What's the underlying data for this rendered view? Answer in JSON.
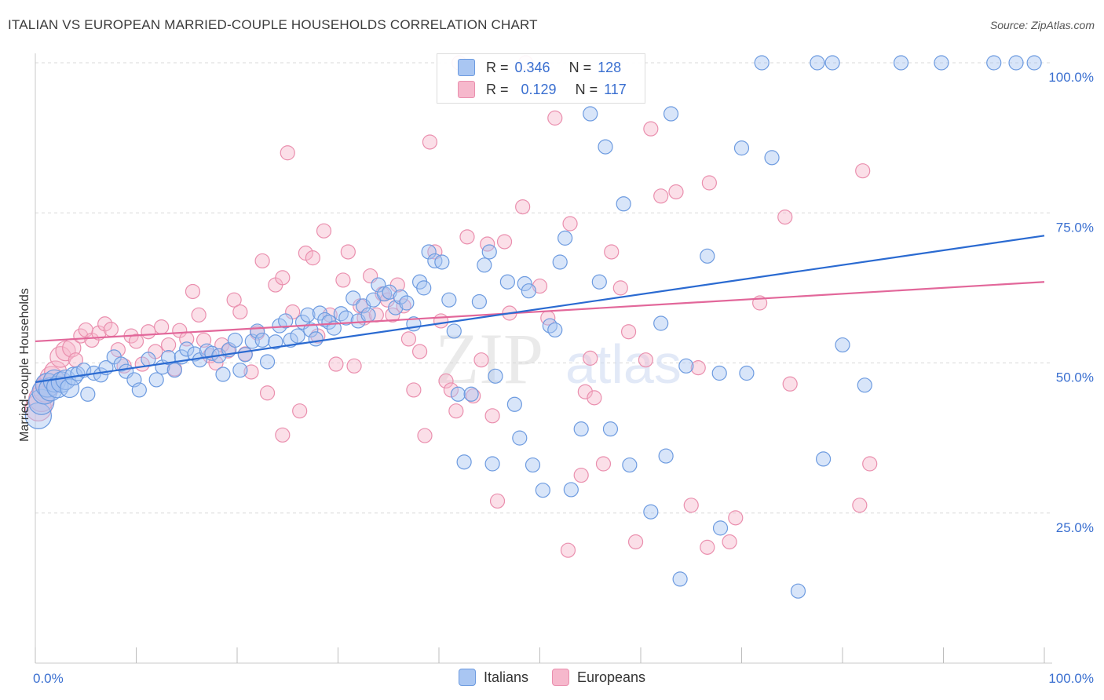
{
  "title": "ITALIAN VS EUROPEAN MARRIED-COUPLE HOUSEHOLDS CORRELATION CHART",
  "source": "Source: ZipAtlas.com",
  "watermark": {
    "zip": "ZIP",
    "atlas": "atlas"
  },
  "colors": {
    "italians_fill": "#a9c6f2",
    "italians_stroke": "#6d9be0",
    "italians_line": "#2a6ad1",
    "europeans_fill": "#f6b8cc",
    "europeans_stroke": "#ea8fae",
    "europeans_line": "#e2679a",
    "axis_text": "#3a6fd0",
    "grid": "#d8d8d8"
  },
  "stats": {
    "italians": {
      "r_label": "R =",
      "r": "0.346",
      "n_label": "N =",
      "n": "128"
    },
    "europeans": {
      "r_label": "R =",
      "r": "0.129",
      "n_label": "N =",
      "n": "117"
    }
  },
  "legend": {
    "italians": "Italians",
    "europeans": "Europeans"
  },
  "chart_data": {
    "type": "scatter",
    "title": "ITALIAN VS EUROPEAN MARRIED-COUPLE HOUSEHOLDS CORRELATION CHART",
    "xlabel": "",
    "ylabel": "Married-couple Households",
    "xlim": [
      0,
      100
    ],
    "ylim": [
      0,
      100
    ],
    "x_tick_labels": [
      "0.0%",
      "100.0%"
    ],
    "y_tick_labels": [
      "25.0%",
      "50.0%",
      "75.0%",
      "100.0%"
    ],
    "y_ticks": [
      25,
      50,
      75,
      100
    ],
    "grid": true,
    "legend_position": "bottom",
    "series": [
      {
        "name": "Italians",
        "trend": {
          "x": [
            0,
            100
          ],
          "y": [
            46.8,
            71.2
          ]
        },
        "points": [
          [
            0.3,
            41.2
          ],
          [
            0.6,
            43.5
          ],
          [
            0.9,
            45.2
          ],
          [
            1.2,
            46.3
          ],
          [
            1.5,
            45.6
          ],
          [
            1.9,
            47.0
          ],
          [
            2.2,
            46.0
          ],
          [
            2.6,
            46.8
          ],
          [
            3.0,
            47.2
          ],
          [
            3.4,
            45.8
          ],
          [
            3.8,
            47.8
          ],
          [
            4.2,
            48.2
          ],
          [
            4.8,
            48.8
          ],
          [
            5.2,
            44.8
          ],
          [
            5.8,
            48.3
          ],
          [
            6.5,
            48.0
          ],
          [
            7.0,
            49.2
          ],
          [
            7.8,
            51.0
          ],
          [
            8.5,
            49.8
          ],
          [
            9.0,
            48.6
          ],
          [
            9.8,
            47.2
          ],
          [
            10.3,
            45.5
          ],
          [
            11.2,
            50.6
          ],
          [
            12.0,
            47.2
          ],
          [
            12.6,
            49.3
          ],
          [
            13.2,
            50.9
          ],
          [
            13.8,
            48.8
          ],
          [
            14.5,
            51.0
          ],
          [
            15.0,
            52.3
          ],
          [
            15.8,
            51.5
          ],
          [
            16.3,
            50.5
          ],
          [
            17.0,
            52.0
          ],
          [
            17.5,
            51.6
          ],
          [
            18.2,
            51.2
          ],
          [
            18.6,
            48.1
          ],
          [
            19.2,
            52.2
          ],
          [
            19.8,
            53.8
          ],
          [
            20.3,
            48.8
          ],
          [
            20.8,
            51.4
          ],
          [
            21.5,
            53.6
          ],
          [
            22.0,
            55.3
          ],
          [
            22.5,
            53.8
          ],
          [
            23.0,
            50.2
          ],
          [
            23.8,
            53.5
          ],
          [
            24.2,
            56.2
          ],
          [
            24.8,
            57.0
          ],
          [
            25.3,
            53.8
          ],
          [
            26.0,
            54.5
          ],
          [
            26.5,
            56.8
          ],
          [
            27.0,
            58.0
          ],
          [
            27.3,
            55.5
          ],
          [
            27.8,
            54.0
          ],
          [
            28.2,
            58.3
          ],
          [
            28.7,
            57.2
          ],
          [
            29.1,
            56.8
          ],
          [
            29.6,
            55.8
          ],
          [
            30.3,
            58.2
          ],
          [
            30.8,
            57.5
          ],
          [
            31.5,
            60.8
          ],
          [
            32.0,
            57.0
          ],
          [
            32.5,
            59.5
          ],
          [
            33.0,
            58.0
          ],
          [
            33.5,
            60.5
          ],
          [
            34.0,
            63.0
          ],
          [
            34.6,
            61.5
          ],
          [
            35.1,
            61.8
          ],
          [
            35.7,
            59.2
          ],
          [
            36.2,
            61.0
          ],
          [
            36.8,
            60.0
          ],
          [
            37.5,
            56.5
          ],
          [
            38.1,
            63.5
          ],
          [
            38.5,
            62.5
          ],
          [
            39.0,
            68.5
          ],
          [
            39.6,
            67.0
          ],
          [
            40.3,
            66.8
          ],
          [
            41.0,
            60.5
          ],
          [
            41.5,
            55.3
          ],
          [
            41.9,
            44.8
          ],
          [
            42.5,
            33.5
          ],
          [
            43.2,
            44.8
          ],
          [
            44.0,
            60.2
          ],
          [
            44.5,
            66.3
          ],
          [
            45.0,
            68.5
          ],
          [
            45.3,
            33.2
          ],
          [
            45.6,
            47.8
          ],
          [
            46.8,
            63.5
          ],
          [
            47.5,
            43.1
          ],
          [
            48.0,
            37.5
          ],
          [
            48.5,
            63.2
          ],
          [
            48.9,
            62.0
          ],
          [
            49.3,
            33.0
          ],
          [
            50.3,
            28.8
          ],
          [
            51.0,
            56.2
          ],
          [
            51.5,
            55.5
          ],
          [
            52.0,
            66.8
          ],
          [
            52.5,
            70.8
          ],
          [
            53.1,
            28.9
          ],
          [
            54.1,
            39.0
          ],
          [
            55.0,
            91.5
          ],
          [
            55.9,
            63.5
          ],
          [
            56.5,
            86.0
          ],
          [
            57.0,
            39.0
          ],
          [
            58.3,
            76.5
          ],
          [
            58.9,
            33.0
          ],
          [
            61.0,
            25.2
          ],
          [
            62.0,
            56.6
          ],
          [
            62.5,
            34.5
          ],
          [
            63.0,
            91.5
          ],
          [
            63.9,
            14.0
          ],
          [
            64.5,
            49.5
          ],
          [
            66.6,
            67.8
          ],
          [
            67.8,
            48.3
          ],
          [
            67.9,
            22.5
          ],
          [
            70.0,
            85.8
          ],
          [
            70.5,
            48.3
          ],
          [
            72.0,
            100.0
          ],
          [
            73.0,
            84.2
          ],
          [
            75.6,
            12.0
          ],
          [
            77.5,
            100.0
          ],
          [
            78.1,
            34.0
          ],
          [
            79.0,
            100.0
          ],
          [
            80.0,
            53.0
          ],
          [
            82.2,
            46.3
          ],
          [
            85.8,
            100.0
          ],
          [
            89.8,
            100.0
          ],
          [
            95.0,
            100.0
          ],
          [
            97.2,
            100.0
          ],
          [
            99.0,
            100.0
          ]
        ]
      },
      {
        "name": "Europeans",
        "trend": {
          "x": [
            0,
            100
          ],
          "y": [
            53.6,
            63.5
          ]
        },
        "points": [
          [
            0.3,
            42.5
          ],
          [
            0.6,
            44.0
          ],
          [
            1.0,
            45.5
          ],
          [
            1.3,
            46.3
          ],
          [
            1.6,
            47.5
          ],
          [
            2.0,
            48.5
          ],
          [
            2.5,
            51.0
          ],
          [
            3.0,
            52.0
          ],
          [
            3.6,
            52.5
          ],
          [
            4.0,
            50.5
          ],
          [
            4.5,
            54.5
          ],
          [
            5.0,
            55.5
          ],
          [
            5.6,
            53.8
          ],
          [
            6.3,
            55.0
          ],
          [
            6.9,
            56.5
          ],
          [
            7.5,
            55.6
          ],
          [
            8.2,
            52.2
          ],
          [
            8.8,
            49.5
          ],
          [
            9.5,
            54.5
          ],
          [
            10.0,
            53.6
          ],
          [
            10.6,
            49.8
          ],
          [
            11.2,
            55.2
          ],
          [
            11.9,
            51.9
          ],
          [
            12.5,
            56.0
          ],
          [
            13.2,
            53.0
          ],
          [
            13.8,
            49.0
          ],
          [
            14.3,
            55.4
          ],
          [
            15.0,
            54.0
          ],
          [
            15.6,
            61.9
          ],
          [
            16.2,
            58.0
          ],
          [
            16.7,
            53.8
          ],
          [
            17.3,
            51.2
          ],
          [
            17.9,
            50.0
          ],
          [
            18.5,
            53.0
          ],
          [
            19.1,
            52.0
          ],
          [
            19.7,
            60.5
          ],
          [
            20.3,
            58.5
          ],
          [
            20.8,
            51.5
          ],
          [
            21.4,
            48.5
          ],
          [
            22.0,
            55.0
          ],
          [
            22.5,
            67.0
          ],
          [
            23.0,
            45.0
          ],
          [
            23.8,
            63.0
          ],
          [
            24.5,
            64.2
          ],
          [
            24.5,
            38.0
          ],
          [
            25.0,
            85.0
          ],
          [
            25.5,
            58.5
          ],
          [
            26.2,
            42.0
          ],
          [
            26.8,
            68.3
          ],
          [
            27.5,
            67.5
          ],
          [
            28.0,
            54.5
          ],
          [
            28.6,
            72.0
          ],
          [
            29.2,
            58.0
          ],
          [
            29.8,
            49.8
          ],
          [
            30.5,
            63.8
          ],
          [
            31.0,
            68.5
          ],
          [
            31.6,
            49.5
          ],
          [
            32.2,
            59.5
          ],
          [
            32.6,
            57.5
          ],
          [
            33.2,
            64.5
          ],
          [
            33.8,
            58.0
          ],
          [
            34.4,
            61.5
          ],
          [
            34.9,
            60.5
          ],
          [
            35.4,
            58.0
          ],
          [
            35.9,
            63.0
          ],
          [
            36.5,
            59.5
          ],
          [
            37.0,
            54.0
          ],
          [
            37.5,
            45.5
          ],
          [
            38.1,
            51.9
          ],
          [
            38.6,
            37.9
          ],
          [
            39.1,
            86.8
          ],
          [
            39.6,
            68.5
          ],
          [
            40.2,
            57.0
          ],
          [
            40.7,
            47.0
          ],
          [
            41.2,
            45.5
          ],
          [
            41.7,
            42.0
          ],
          [
            42.0,
            100.0
          ],
          [
            42.8,
            71.0
          ],
          [
            43.4,
            44.5
          ],
          [
            44.2,
            50.5
          ],
          [
            44.8,
            69.8
          ],
          [
            45.3,
            41.2
          ],
          [
            45.8,
            27.0
          ],
          [
            46.5,
            70.2
          ],
          [
            47.0,
            58.3
          ],
          [
            48.3,
            76.0
          ],
          [
            48.6,
            100.0
          ],
          [
            50.0,
            62.8
          ],
          [
            50.8,
            57.5
          ],
          [
            51.5,
            90.8
          ],
          [
            52.8,
            18.8
          ],
          [
            53.0,
            73.2
          ],
          [
            54.1,
            31.3
          ],
          [
            54.5,
            45.2
          ],
          [
            55.0,
            50.8
          ],
          [
            55.4,
            44.2
          ],
          [
            56.3,
            33.2
          ],
          [
            57.1,
            68.5
          ],
          [
            58.0,
            62.5
          ],
          [
            58.8,
            55.2
          ],
          [
            59.5,
            20.2
          ],
          [
            60.5,
            50.5
          ],
          [
            61.0,
            89.0
          ],
          [
            62.0,
            77.8
          ],
          [
            63.5,
            78.5
          ],
          [
            65.0,
            26.3
          ],
          [
            65.7,
            49.2
          ],
          [
            66.8,
            80.0
          ],
          [
            66.6,
            19.3
          ],
          [
            68.8,
            20.2
          ],
          [
            69.4,
            24.2
          ],
          [
            71.8,
            60.0
          ],
          [
            74.3,
            74.3
          ],
          [
            74.8,
            46.5
          ],
          [
            81.7,
            26.3
          ],
          [
            82.0,
            82.0
          ],
          [
            82.7,
            33.2
          ]
        ]
      }
    ]
  }
}
